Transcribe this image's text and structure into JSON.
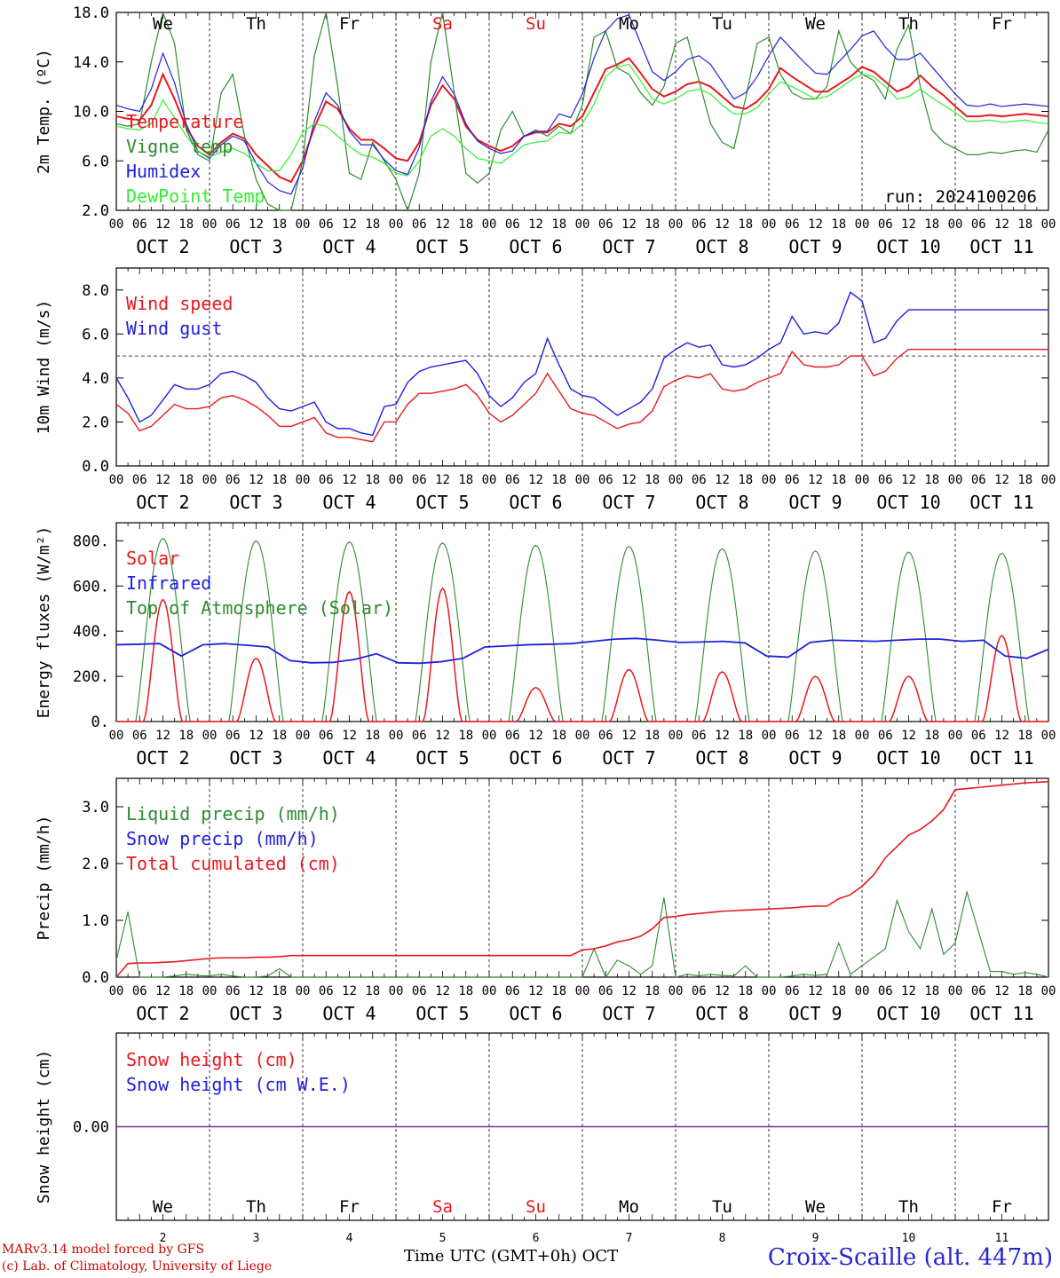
{
  "run_label": "run: 2024100206",
  "days": [
    "We",
    "Th",
    "Fr",
    "Sa",
    "Su",
    "Mo",
    "Tu",
    "We",
    "Th",
    "Fr"
  ],
  "weekend_color": "#e8191e",
  "weekend_days": [
    "Sa",
    "Su"
  ],
  "day_numbers": [
    "2",
    "3",
    "4",
    "5",
    "6",
    "7",
    "8",
    "9",
    "10",
    "11"
  ],
  "date_labels": [
    "OCT  2",
    "OCT  3",
    "OCT  4",
    "OCT  5",
    "OCT  6",
    "OCT  7",
    "OCT  8",
    "OCT  9",
    "OCT 10",
    "OCT 11"
  ],
  "hour_labels": [
    "00",
    "06",
    "12",
    "18"
  ],
  "footer": {
    "credit_line1": "MARv3.14 model forced by GFS",
    "credit_line2": "(c) Lab. of Climatology, University of Liege",
    "xaxis_title": "Time UTC (GMT+0h) OCT",
    "station": "Croix-Scaille (alt. 447m)"
  },
  "chart_data": [
    {
      "type": "line",
      "ylabel": "2m Temp. (ºC)",
      "ylim": [
        2,
        18
      ],
      "yticks": [
        "2.0",
        "6.0",
        "10.0",
        "14.0",
        "18.0"
      ],
      "xlim_hours": [
        0,
        240
      ],
      "grid": "dashed verticals at 00 UTC",
      "legend_position": "left",
      "x_hours": [
        0,
        3,
        6,
        9,
        12,
        15,
        18,
        21,
        24,
        27,
        30,
        33,
        36,
        39,
        42,
        45,
        48,
        51,
        54,
        57,
        60,
        63,
        66,
        69,
        72,
        75,
        78,
        81,
        84,
        87,
        90,
        93,
        96,
        99,
        102,
        105,
        108,
        111,
        114,
        117,
        120,
        123,
        126,
        129,
        132,
        135,
        138,
        141,
        144,
        147,
        150,
        153,
        156,
        159,
        162,
        165,
        168,
        171,
        174,
        177,
        180,
        183,
        186,
        189,
        192,
        195,
        198,
        201,
        204,
        207,
        210,
        213,
        216,
        219,
        222,
        225,
        228,
        231,
        234,
        237,
        240
      ],
      "series": [
        {
          "name": "Temperature",
          "color": "#e8191e",
          "values": [
            9.6,
            9.4,
            9.3,
            10.5,
            13.0,
            11.0,
            8.7,
            7.2,
            6.5,
            7.5,
            8.2,
            7.8,
            6.5,
            5.6,
            4.7,
            4.3,
            6.0,
            8.7,
            10.8,
            10.2,
            8.6,
            7.7,
            7.7,
            7.0,
            6.2,
            6.0,
            7.5,
            10.5,
            12.1,
            11.0,
            8.8,
            7.7,
            7.2,
            6.8,
            7.2,
            8.0,
            8.3,
            8.3,
            9.0,
            8.8,
            9.6,
            11.5,
            13.4,
            13.8,
            14.3,
            13.1,
            11.8,
            11.2,
            11.6,
            12.2,
            12.4,
            12.0,
            11.2,
            10.4,
            10.2,
            10.8,
            11.8,
            13.5,
            12.8,
            12.2,
            11.6,
            11.6,
            12.2,
            12.8,
            13.6,
            13.2,
            12.4,
            11.6,
            12.0,
            12.9,
            12.0,
            11.3,
            10.4,
            9.6,
            9.6,
            9.7,
            9.6,
            9.7,
            9.8,
            9.7,
            9.6
          ]
        },
        {
          "name": "Vigne temp",
          "color": "#2e8b2e",
          "values": [
            9.0,
            8.8,
            9.0,
            14.0,
            18.5,
            15.5,
            8.5,
            6.5,
            6.0,
            11.5,
            13.0,
            8.0,
            4.5,
            2.5,
            1.5,
            1.0,
            6.0,
            14.5,
            18.0,
            12.0,
            5.0,
            4.5,
            7.5,
            6.0,
            4.5,
            2.0,
            5.0,
            14.0,
            18.0,
            11.5,
            5.0,
            4.2,
            5.0,
            8.5,
            10.0,
            8.0,
            8.5,
            8.0,
            8.8,
            8.2,
            10.5,
            16.0,
            16.5,
            13.5,
            13.0,
            11.5,
            10.5,
            12.0,
            15.5,
            16.0,
            12.5,
            9.0,
            7.5,
            7.0,
            11.0,
            15.5,
            16.0,
            13.0,
            11.5,
            11.0,
            11.0,
            12.0,
            16.5,
            14.0,
            13.0,
            12.5,
            11.0,
            15.0,
            17.0,
            12.0,
            8.5,
            7.5,
            7.0,
            6.5,
            6.5,
            6.7,
            6.6,
            6.8,
            6.9,
            6.7,
            8.5
          ]
        },
        {
          "name": "Humidex",
          "color": "#2020dd",
          "values": [
            10.5,
            10.2,
            10.0,
            11.8,
            14.7,
            12.3,
            9.0,
            6.8,
            6.2,
            7.3,
            8.0,
            7.6,
            5.8,
            4.3,
            3.6,
            3.3,
            5.4,
            9.2,
            11.5,
            10.5,
            8.4,
            7.3,
            7.3,
            6.1,
            5.2,
            4.9,
            7.1,
            10.8,
            12.8,
            11.4,
            9.0,
            7.6,
            7.0,
            6.6,
            6.8,
            8.0,
            8.4,
            8.4,
            9.8,
            9.5,
            11.4,
            14.3,
            16.5,
            17.5,
            17.8,
            15.5,
            13.2,
            12.5,
            13.2,
            14.2,
            14.5,
            13.8,
            12.4,
            11.0,
            11.5,
            12.8,
            14.5,
            16.0,
            15.0,
            14.0,
            13.1,
            13.0,
            14.0,
            15.0,
            16.1,
            16.5,
            15.2,
            14.2,
            14.2,
            14.7,
            13.6,
            12.5,
            11.4,
            10.5,
            10.4,
            10.6,
            10.4,
            10.5,
            10.6,
            10.5,
            10.4
          ]
        },
        {
          "name": "DewPoint Temp",
          "color": "#33ee33",
          "values": [
            8.8,
            8.6,
            8.5,
            9.0,
            10.9,
            9.5,
            8.0,
            6.8,
            6.3,
            6.7,
            7.0,
            6.6,
            5.8,
            5.2,
            5.2,
            6.5,
            8.3,
            9.0,
            8.8,
            8.0,
            7.2,
            6.5,
            6.3,
            5.8,
            5.0,
            4.8,
            6.0,
            8.0,
            8.6,
            8.0,
            7.0,
            6.2,
            6.0,
            5.8,
            6.5,
            7.3,
            7.5,
            7.6,
            8.3,
            8.2,
            9.0,
            10.6,
            12.8,
            13.6,
            13.8,
            12.5,
            11.0,
            10.6,
            11.0,
            11.6,
            11.8,
            11.4,
            10.5,
            9.8,
            9.8,
            10.3,
            11.4,
            12.4,
            12.0,
            11.5,
            11.0,
            11.2,
            11.8,
            12.5,
            13.0,
            12.8,
            12.0,
            11.0,
            11.2,
            11.8,
            11.1,
            10.5,
            9.9,
            9.2,
            9.2,
            9.3,
            9.1,
            9.2,
            9.3,
            9.1,
            9.0
          ]
        }
      ]
    },
    {
      "type": "line",
      "ylabel": "10m Wind (m/s)",
      "ylim": [
        0,
        9
      ],
      "yticks": [
        "0.0",
        "2.0",
        "4.0",
        "6.0",
        "8.0"
      ],
      "reference_line": 5,
      "legend_position": "left",
      "series": [
        {
          "name": "Wind speed",
          "color": "#e8191e",
          "values": [
            2.8,
            2.4,
            1.6,
            1.8,
            2.3,
            2.8,
            2.6,
            2.6,
            2.7,
            3.1,
            3.2,
            3.0,
            2.7,
            2.3,
            1.8,
            1.8,
            2.0,
            2.2,
            1.5,
            1.3,
            1.3,
            1.2,
            1.1,
            2.0,
            2.0,
            2.8,
            3.3,
            3.3,
            3.4,
            3.5,
            3.7,
            3.2,
            2.4,
            2.0,
            2.3,
            2.8,
            3.3,
            4.2,
            3.4,
            2.6,
            2.4,
            2.3,
            2.0,
            1.7,
            1.9,
            2.0,
            2.5,
            3.6,
            3.9,
            4.1,
            4.0,
            4.2,
            3.5,
            3.4,
            3.5,
            3.8,
            4.0,
            4.2,
            5.2,
            4.6,
            4.5,
            4.5,
            4.6,
            5.0,
            5.0,
            4.1,
            4.3,
            4.9,
            5.3,
            5.3,
            5.3,
            5.3,
            5.3,
            5.3,
            5.3,
            5.3,
            5.3,
            5.3,
            5.3,
            5.3,
            5.3
          ]
        },
        {
          "name": "Wind gust",
          "color": "#2020dd",
          "values": [
            4.0,
            3.1,
            2.0,
            2.3,
            3.0,
            3.7,
            3.5,
            3.5,
            3.7,
            4.2,
            4.3,
            4.1,
            3.8,
            3.1,
            2.6,
            2.5,
            2.7,
            2.9,
            2.0,
            1.7,
            1.7,
            1.5,
            1.4,
            2.7,
            2.8,
            3.8,
            4.3,
            4.5,
            4.6,
            4.7,
            4.8,
            4.2,
            3.2,
            2.7,
            3.1,
            3.8,
            4.2,
            5.8,
            4.6,
            3.5,
            3.2,
            3.1,
            2.7,
            2.3,
            2.6,
            2.9,
            3.5,
            4.9,
            5.3,
            5.6,
            5.4,
            5.5,
            4.6,
            4.5,
            4.6,
            4.9,
            5.3,
            5.6,
            6.8,
            6.0,
            6.1,
            6.0,
            6.5,
            7.9,
            7.5,
            5.6,
            5.8,
            6.6,
            7.1,
            7.1,
            7.1,
            7.1,
            7.1,
            7.1,
            7.1,
            7.1,
            7.1,
            7.1,
            7.1,
            7.1,
            7.1
          ]
        }
      ]
    },
    {
      "type": "line",
      "ylabel": "Energy fluxes (W/m²)",
      "ylim": [
        0,
        880
      ],
      "yticks": [
        "0.",
        "200.",
        "400.",
        "600.",
        "800."
      ],
      "legend_position": "left",
      "series": [
        {
          "name": "Solar",
          "color": "#e8191e",
          "peaks_wm2": [
            540,
            280,
            575,
            590,
            150,
            230,
            220,
            200,
            200,
            380
          ]
        },
        {
          "name": "Infrared",
          "color": "#2020dd",
          "values": [
            340,
            342,
            345,
            290,
            340,
            345,
            338,
            330,
            270,
            260,
            262,
            275,
            300,
            260,
            258,
            265,
            280,
            330,
            335,
            340,
            342,
            345,
            355,
            365,
            368,
            360,
            350,
            352,
            355,
            348,
            290,
            285,
            350,
            360,
            358,
            355,
            360,
            365,
            365,
            355,
            360,
            290,
            280,
            320
          ]
        },
        {
          "name": "Top of Atmosphere (Solar)",
          "color": "#2e8b2e",
          "peaks_wm2": [
            810,
            800,
            795,
            790,
            780,
            775,
            765,
            755,
            750,
            745
          ]
        }
      ]
    },
    {
      "type": "line",
      "ylabel": "Precip (mm/h)",
      "ylim": [
        0,
        3.5
      ],
      "yticks": [
        "0.0",
        "1.0",
        "2.0",
        "3.0"
      ],
      "legend_position": "left",
      "series": [
        {
          "name": "Liquid precip (mm/h)",
          "color": "#2e8b2e",
          "values": [
            0.3,
            1.15,
            0.0,
            0.0,
            0.0,
            0.02,
            0.05,
            0.03,
            0.02,
            0.05,
            0.02,
            0.0,
            0.0,
            0.02,
            0.15,
            0.0,
            0.0,
            0.0,
            0.0,
            0.0,
            0.0,
            0.0,
            0.0,
            0.0,
            0.0,
            0.0,
            0.0,
            0.0,
            0.0,
            0.0,
            0.0,
            0.0,
            0.0,
            0.0,
            0.0,
            0.0,
            0.0,
            0.0,
            0.0,
            0.0,
            0.0,
            0.5,
            0.0,
            0.3,
            0.2,
            0.05,
            0.2,
            1.4,
            0.0,
            0.05,
            0.02,
            0.05,
            0.03,
            0.02,
            0.2,
            0.0,
            0.0,
            0.0,
            0.02,
            0.05,
            0.03,
            0.05,
            0.6,
            0.05,
            0.2,
            0.35,
            0.5,
            1.35,
            0.8,
            0.5,
            1.2,
            0.4,
            0.6,
            1.5,
            0.8,
            0.1,
            0.1,
            0.05,
            0.08,
            0.05,
            0.0
          ]
        },
        {
          "name": "Snow precip (mm/h)",
          "color": "#2020dd",
          "values": [
            0
          ]
        },
        {
          "name": "Total cumulated (cm)",
          "color": "#e8191e",
          "values": [
            0.0,
            0.24,
            0.25,
            0.25,
            0.26,
            0.27,
            0.29,
            0.31,
            0.33,
            0.34,
            0.34,
            0.34,
            0.35,
            0.35,
            0.36,
            0.38,
            0.38,
            0.38,
            0.38,
            0.38,
            0.38,
            0.38,
            0.38,
            0.38,
            0.38,
            0.38,
            0.38,
            0.38,
            0.38,
            0.38,
            0.38,
            0.38,
            0.38,
            0.38,
            0.38,
            0.38,
            0.38,
            0.38,
            0.38,
            0.38,
            0.48,
            0.5,
            0.55,
            0.62,
            0.66,
            0.72,
            0.85,
            1.05,
            1.07,
            1.1,
            1.12,
            1.14,
            1.16,
            1.17,
            1.18,
            1.19,
            1.2,
            1.21,
            1.22,
            1.24,
            1.25,
            1.25,
            1.38,
            1.45,
            1.6,
            1.8,
            2.1,
            2.3,
            2.5,
            2.6,
            2.75,
            2.95,
            3.3,
            3.32,
            3.34,
            3.36,
            3.38,
            3.4,
            3.42,
            3.43,
            3.44
          ]
        }
      ]
    },
    {
      "type": "line",
      "ylabel": "Snow height (cm)",
      "ylim": [
        -1,
        1
      ],
      "yticks": [
        "0.00"
      ],
      "legend_position": "left",
      "series": [
        {
          "name": "Snow height (cm)",
          "color": "#e8191e",
          "values": [
            0
          ]
        },
        {
          "name": "Snow height (cm W.E.)",
          "color": "#2020dd",
          "values": [
            0
          ]
        }
      ]
    }
  ]
}
